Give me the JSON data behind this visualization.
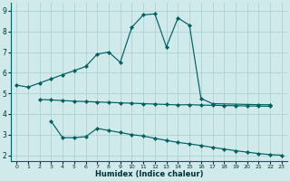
{
  "line1_x": [
    0,
    1,
    2,
    3,
    4,
    5,
    6,
    7,
    8,
    9,
    10,
    11,
    12,
    13,
    14,
    15,
    16,
    17,
    21,
    22
  ],
  "line1_y": [
    5.4,
    5.3,
    5.5,
    5.7,
    5.9,
    6.1,
    6.3,
    6.9,
    7.0,
    6.5,
    8.2,
    8.8,
    8.85,
    7.25,
    8.65,
    8.3,
    4.75,
    4.5,
    4.45,
    4.45
  ],
  "line2_x": [
    2,
    3,
    4,
    5,
    6,
    7,
    8,
    9,
    10,
    11,
    12,
    13,
    14,
    15,
    16,
    17,
    18,
    19,
    20,
    21,
    22
  ],
  "line2_y": [
    4.7,
    4.68,
    4.65,
    4.62,
    4.6,
    4.58,
    4.56,
    4.54,
    4.52,
    4.5,
    4.48,
    4.46,
    4.44,
    4.45,
    4.43,
    4.42,
    4.41,
    4.4,
    4.39,
    4.38,
    4.37
  ],
  "line3_x": [
    3,
    4,
    5,
    6,
    7,
    8,
    9,
    10,
    11,
    12,
    13,
    14,
    15,
    16,
    17,
    18,
    19,
    20,
    21,
    22,
    23
  ],
  "line3_y": [
    3.65,
    2.85,
    2.85,
    2.9,
    3.3,
    3.2,
    3.1,
    3.0,
    2.93,
    2.82,
    2.72,
    2.62,
    2.55,
    2.47,
    2.38,
    2.3,
    2.22,
    2.15,
    2.08,
    2.03,
    2.0
  ],
  "color": "#006060",
  "bg_color": "#d0eaec",
  "xlabel": "Humidex (Indice chaleur)",
  "ylim": [
    1.7,
    9.4
  ],
  "xlim": [
    -0.5,
    23.5
  ],
  "yticks": [
    2,
    3,
    4,
    5,
    6,
    7,
    8,
    9
  ],
  "xticks": [
    0,
    1,
    2,
    3,
    4,
    5,
    6,
    7,
    8,
    9,
    10,
    11,
    12,
    13,
    14,
    15,
    16,
    17,
    18,
    19,
    20,
    21,
    22,
    23
  ]
}
